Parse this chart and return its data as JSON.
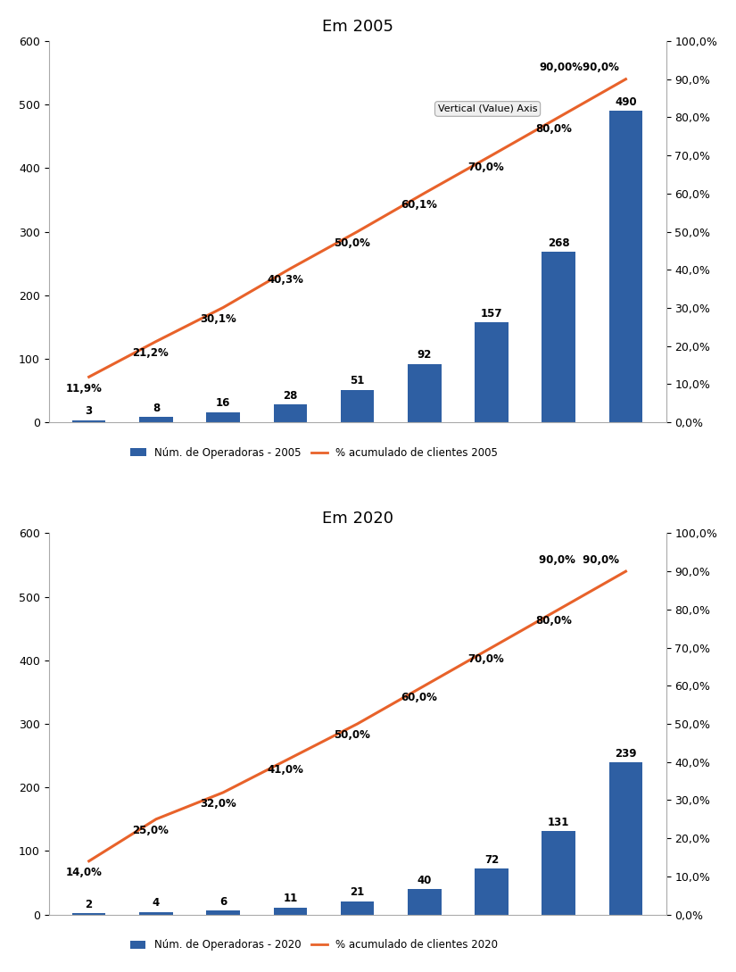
{
  "chart2005": {
    "title": "Em 2005",
    "bar_values": [
      3,
      8,
      16,
      28,
      51,
      92,
      157,
      268,
      490
    ],
    "line_values": [
      11.9,
      21.2,
      30.1,
      40.3,
      50.0,
      60.1,
      70.0,
      80.0,
      90.0
    ],
    "bar_labels": [
      "3",
      "8",
      "16",
      "28",
      "51",
      "92",
      "157",
      "268",
      "490"
    ],
    "line_labels": [
      "11,9%",
      "21,2%",
      "30,1%",
      "40,3%",
      "50,0%",
      "60,1%",
      "70,0%",
      "80,0%",
      "90,00%90,0%"
    ],
    "legend_bar": "Núm. de Operadoras - 2005",
    "legend_line": "% acumulado de clientes 2005",
    "ylim_left": [
      0,
      600
    ],
    "ylim_right": [
      0,
      100
    ],
    "yticks_left": [
      0,
      100,
      200,
      300,
      400,
      500,
      600
    ],
    "yticks_right": [
      0.0,
      10.0,
      20.0,
      30.0,
      40.0,
      50.0,
      60.0,
      70.0,
      80.0,
      90.0,
      100.0
    ],
    "ytick_labels_right": [
      "0,0%",
      "10,0%",
      "20,0%",
      "30,0%",
      "40,0%",
      "50,0%",
      "60,0%",
      "70,0%",
      "80,0%",
      "90,0%",
      "100,0%"
    ],
    "tooltip_text": "Vertical (Value) Axis",
    "tooltip_xi": 7,
    "tooltip_yi": 80.0
  },
  "chart2020": {
    "title": "Em 2020",
    "bar_values": [
      2,
      4,
      6,
      11,
      21,
      40,
      72,
      131,
      239
    ],
    "line_values": [
      14.0,
      25.0,
      32.0,
      41.0,
      50.0,
      60.0,
      70.0,
      80.0,
      90.0
    ],
    "bar_labels": [
      "2",
      "4",
      "6",
      "11",
      "21",
      "40",
      "72",
      "131",
      "239"
    ],
    "line_labels": [
      "14,0%",
      "25,0%",
      "32,0%",
      "41,0%",
      "50,0%",
      "60,0%",
      "70,0%",
      "80,0%",
      "90,0%  90,0%"
    ],
    "legend_bar": "Núm. de Operadoras - 2020",
    "legend_line": "% acumulado de clientes 2020",
    "ylim_left": [
      0,
      600
    ],
    "ylim_right": [
      0,
      100
    ],
    "yticks_left": [
      0,
      100,
      200,
      300,
      400,
      500,
      600
    ],
    "yticks_right": [
      0.0,
      10.0,
      20.0,
      30.0,
      40.0,
      50.0,
      60.0,
      70.0,
      80.0,
      90.0,
      100.0
    ],
    "ytick_labels_right": [
      "0,0%",
      "10,0%",
      "20,0%",
      "30,0%",
      "40,0%",
      "50,0%",
      "60,0%",
      "70,0%",
      "80,0%",
      "90,0%",
      "100,0%"
    ]
  },
  "bar_color": "#2E5FA3",
  "line_color": "#E8622A",
  "background_color": "#FFFFFF",
  "title_fontsize": 13,
  "bar_label_fontsize": 8.5,
  "line_label_fontsize": 8.5,
  "tick_fontsize": 9,
  "legend_fontsize": 8.5
}
